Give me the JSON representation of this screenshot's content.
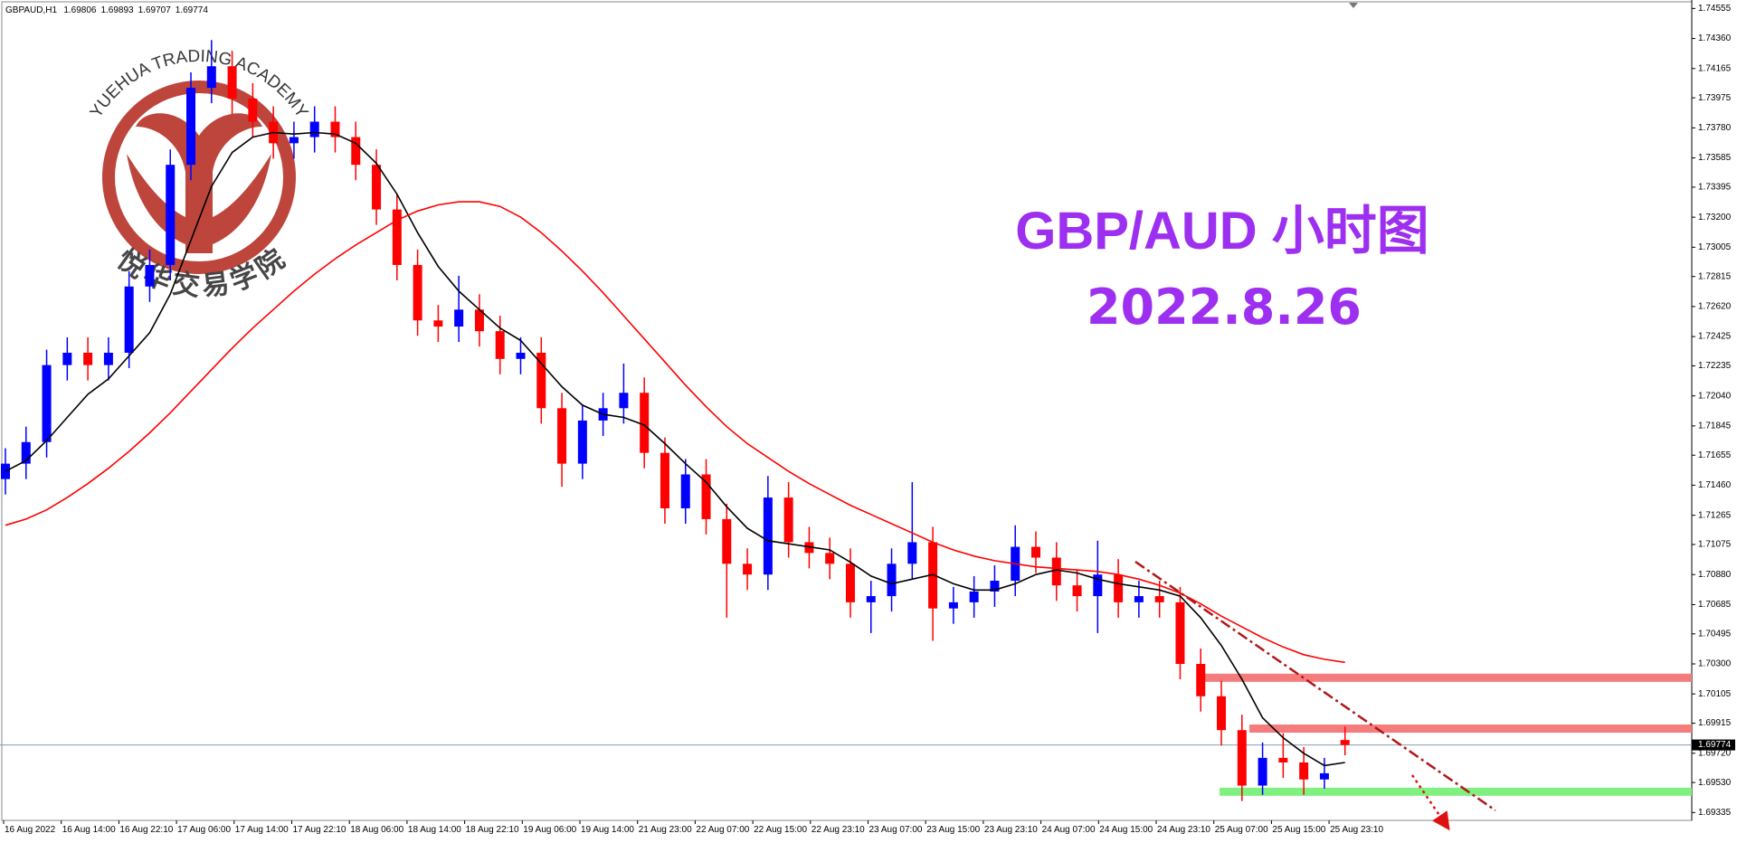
{
  "chart_data": {
    "type": "candlestick",
    "symbol": "GBPAUD,H1",
    "title": "GBP/AUD 小时图",
    "subtitle": "2022.8.26",
    "watermark": {
      "en": "YUEHUA TRADING ACADEMY",
      "zh": "悦华交易学院"
    },
    "up_color": "#0000ff",
    "down_color": "#ff0000",
    "ohlc": [
      [
        1.715,
        1.717,
        1.714,
        1.716
      ],
      [
        1.716,
        1.7184,
        1.715,
        1.7174
      ],
      [
        1.7174,
        1.7234,
        1.7164,
        1.7224
      ],
      [
        1.7224,
        1.7242,
        1.7214,
        1.7232
      ],
      [
        1.7232,
        1.7242,
        1.7214,
        1.7224
      ],
      [
        1.7224,
        1.7242,
        1.7214,
        1.7232
      ],
      [
        1.7232,
        1.7285,
        1.7222,
        1.7275
      ],
      [
        1.7275,
        1.7299,
        1.7265,
        1.7289
      ],
      [
        1.7289,
        1.7364,
        1.7279,
        1.7354
      ],
      [
        1.7354,
        1.7414,
        1.7344,
        1.7404
      ],
      [
        1.7404,
        1.7435,
        1.7394,
        1.7418
      ],
      [
        1.7418,
        1.7428,
        1.7387,
        1.7397
      ],
      [
        1.7397,
        1.7407,
        1.7372,
        1.7382
      ],
      [
        1.7382,
        1.7392,
        1.7358,
        1.7368
      ],
      [
        1.7368,
        1.7382,
        1.7358,
        1.7372
      ],
      [
        1.7372,
        1.7392,
        1.7362,
        1.7382
      ],
      [
        1.7382,
        1.7392,
        1.7362,
        1.7372
      ],
      [
        1.7372,
        1.7382,
        1.7344,
        1.7354
      ],
      [
        1.7354,
        1.7364,
        1.7315,
        1.7325
      ],
      [
        1.7325,
        1.7335,
        1.7279,
        1.7289
      ],
      [
        1.7289,
        1.7299,
        1.7243,
        1.7253
      ],
      [
        1.7253,
        1.7263,
        1.7239,
        1.7249
      ],
      [
        1.7249,
        1.7282,
        1.7239,
        1.726
      ],
      [
        1.726,
        1.727,
        1.7236,
        1.7246
      ],
      [
        1.7246,
        1.7256,
        1.7218,
        1.7228
      ],
      [
        1.7228,
        1.7242,
        1.7218,
        1.7232
      ],
      [
        1.7232,
        1.7242,
        1.7186,
        1.7196
      ],
      [
        1.7196,
        1.7206,
        1.7145,
        1.716
      ],
      [
        1.716,
        1.7198,
        1.715,
        1.7188
      ],
      [
        1.7188,
        1.7206,
        1.7178,
        1.7196
      ],
      [
        1.7196,
        1.7225,
        1.7186,
        1.7206
      ],
      [
        1.7206,
        1.7216,
        1.7157,
        1.7167
      ],
      [
        1.7167,
        1.7177,
        1.7121,
        1.7131
      ],
      [
        1.7131,
        1.7163,
        1.7121,
        1.7153
      ],
      [
        1.7153,
        1.7163,
        1.7114,
        1.7124
      ],
      [
        1.7124,
        1.7134,
        1.706,
        1.7095
      ],
      [
        1.7095,
        1.7105,
        1.7078,
        1.7088
      ],
      [
        1.7088,
        1.7152,
        1.7078,
        1.7138
      ],
      [
        1.7138,
        1.7148,
        1.7099,
        1.7109
      ],
      [
        1.7109,
        1.7119,
        1.7092,
        1.7102
      ],
      [
        1.7102,
        1.7112,
        1.7085,
        1.7095
      ],
      [
        1.7095,
        1.7105,
        1.706,
        1.707
      ],
      [
        1.707,
        1.7084,
        1.705,
        1.7074
      ],
      [
        1.7074,
        1.7105,
        1.7064,
        1.7095
      ],
      [
        1.7095,
        1.7148,
        1.7085,
        1.7109
      ],
      [
        1.7109,
        1.7119,
        1.7045,
        1.7066
      ],
      [
        1.7066,
        1.708,
        1.7056,
        1.707
      ],
      [
        1.707,
        1.7087,
        1.706,
        1.7077
      ],
      [
        1.7077,
        1.7094,
        1.7067,
        1.7084
      ],
      [
        1.7084,
        1.712,
        1.7074,
        1.7106
      ],
      [
        1.7106,
        1.7116,
        1.7089,
        1.7099
      ],
      [
        1.7099,
        1.7109,
        1.7071,
        1.7081
      ],
      [
        1.7081,
        1.7091,
        1.7064,
        1.7074
      ],
      [
        1.7074,
        1.711,
        1.705,
        1.7088
      ],
      [
        1.7088,
        1.7098,
        1.706,
        1.707
      ],
      [
        1.707,
        1.7084,
        1.706,
        1.7074
      ],
      [
        1.7074,
        1.7084,
        1.706,
        1.707
      ],
      [
        1.707,
        1.708,
        1.702,
        1.703
      ],
      [
        1.703,
        1.704,
        1.6999,
        1.7009
      ],
      [
        1.7009,
        1.7019,
        1.6977,
        1.6987
      ],
      [
        1.6987,
        1.6997,
        1.6941,
        1.6951
      ],
      [
        1.6951,
        1.6979,
        1.6945,
        1.6969
      ],
      [
        1.6969,
        1.6985,
        1.6956,
        1.6966
      ],
      [
        1.6966,
        1.6976,
        1.6945,
        1.6955
      ],
      [
        1.6955,
        1.6969,
        1.6949,
        1.6959
      ],
      [
        1.69806,
        1.69893,
        1.69707,
        1.69774
      ]
    ],
    "ma_series": [
      {
        "color": "#000000",
        "values": [
          1.7155,
          1.7162,
          1.7175,
          1.719,
          1.7205,
          1.7215,
          1.723,
          1.7245,
          1.727,
          1.7305,
          1.734,
          1.7362,
          1.7372,
          1.7375,
          1.7374,
          1.7375,
          1.7374,
          1.7368,
          1.7355,
          1.7335,
          1.731,
          1.7288,
          1.7272,
          1.726,
          1.7248,
          1.724,
          1.7225,
          1.721,
          1.7198,
          1.7192,
          1.719,
          1.7185,
          1.7173,
          1.716,
          1.7148,
          1.7132,
          1.7118,
          1.711,
          1.7108,
          1.7106,
          1.7104,
          1.7096,
          1.7087,
          1.7082,
          1.7085,
          1.7088,
          1.7082,
          1.7078,
          1.7078,
          1.7082,
          1.7088,
          1.7091,
          1.7089,
          1.7085,
          1.7082,
          1.708,
          1.7078,
          1.7074,
          1.706,
          1.7042,
          1.702,
          1.6995,
          1.6982,
          1.6972,
          1.6964,
          1.6966
        ]
      },
      {
        "color": "#ff0000",
        "values": [
          1.712,
          1.7124,
          1.713,
          1.7138,
          1.7147,
          1.7157,
          1.7168,
          1.718,
          1.7193,
          1.7207,
          1.7221,
          1.7235,
          1.7248,
          1.726,
          1.7272,
          1.7283,
          1.7293,
          1.7302,
          1.731,
          1.7318,
          1.7324,
          1.7328,
          1.733,
          1.733,
          1.7327,
          1.732,
          1.731,
          1.7298,
          1.7285,
          1.7271,
          1.7256,
          1.7241,
          1.7226,
          1.7211,
          1.7197,
          1.7184,
          1.7173,
          1.7164,
          1.7155,
          1.7147,
          1.714,
          1.7133,
          1.7127,
          1.7121,
          1.7115,
          1.7109,
          1.7104,
          1.71,
          1.7097,
          1.7095,
          1.7093,
          1.7092,
          1.7091,
          1.709,
          1.7088,
          1.7085,
          1.7081,
          1.7076,
          1.7069,
          1.7061,
          1.7054,
          1.7047,
          1.7041,
          1.7036,
          1.7033,
          1.7031
        ]
      }
    ],
    "levels": [
      {
        "value": 1.7021,
        "color": "#f47c7c"
      },
      {
        "value": 1.6988,
        "color": "#f47c7c"
      },
      {
        "value": 1.6947,
        "color": "#80f080"
      }
    ],
    "ylim": [
      1.6929,
      1.7461
    ],
    "yticks": [
      1.74555,
      {
        "value": 1.7436,
        "label": "1.74360"
      },
      1.74165,
      1.73975,
      {
        "value": 1.7378,
        "label": "1.73780"
      },
      1.73585,
      1.73395,
      {
        "value": 1.732,
        "label": "1.73200"
      },
      1.73005,
      1.72815,
      {
        "value": 1.7262,
        "label": "1.72620"
      },
      1.72425,
      1.72235,
      {
        "value": 1.7204,
        "label": "1.72040"
      },
      1.71845,
      1.71655,
      {
        "value": 1.7146,
        "label": "1.71460"
      },
      1.71265,
      1.71075,
      {
        "value": 1.7088,
        "label": "1.70880"
      },
      1.70685,
      1.70495,
      {
        "value": 1.703,
        "label": "1.70300"
      },
      1.70105,
      1.69915,
      {
        "value": 1.6972,
        "label": "1.69720"
      },
      {
        "value": 1.6953,
        "label": "1.69530"
      },
      1.69335
    ],
    "xtick_labels": [
      "16 Aug 2022",
      "16 Aug 14:00",
      "16 Aug 22:10",
      "17 Aug 06:00",
      "17 Aug 14:00",
      "17 Aug 22:10",
      "18 Aug 06:00",
      "18 Aug 14:00",
      "18 Aug 22:10",
      "19 Aug 06:00",
      "19 Aug 14:00",
      "21 Aug 23:00",
      "22 Aug 07:00",
      "22 Aug 15:00",
      "22 Aug 23:10",
      "23 Aug 07:00",
      "23 Aug 15:00",
      "23 Aug 23:10",
      "24 Aug 07:00",
      "24 Aug 15:00",
      "24 Aug 23:10",
      "25 Aug 07:00",
      "25 Aug 15:00",
      "25 Aug 23:10"
    ]
  }
}
